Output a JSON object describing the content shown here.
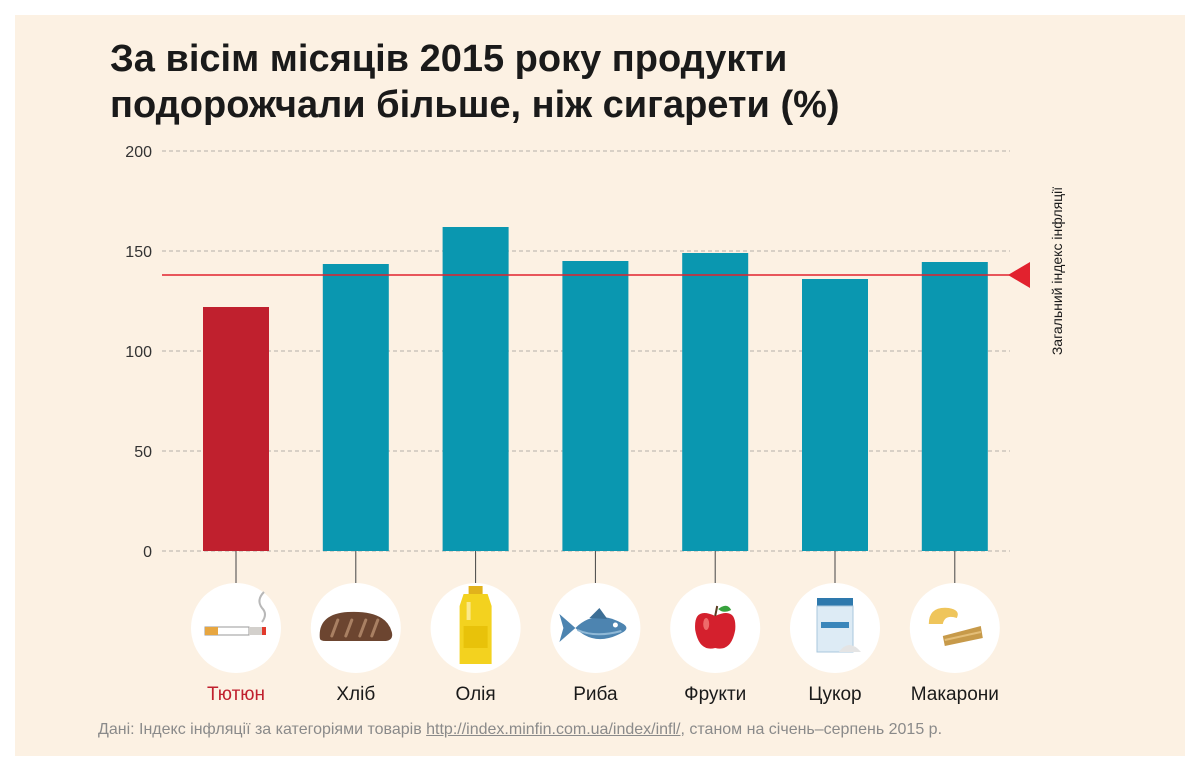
{
  "title": "За вісім місяців 2015 року продукти подорожчали більше, ніж сигарети (%)",
  "colors": {
    "background": "#fcf1e3",
    "highlight": "#c0202e",
    "bar": "#0a97b0",
    "reference_line": "#e2222e",
    "grid": "#b5b0aa",
    "category_text": "#1a1a1a"
  },
  "chart_data": {
    "type": "bar",
    "title": "За вісім місяців 2015 року продукти подорожчали більше, ніж сигарети (%)",
    "categories": [
      "Тютюн",
      "Хліб",
      "Олія",
      "Риба",
      "Фрукти",
      "Цукор",
      "Макарони"
    ],
    "icons": [
      "cigarette-icon",
      "bread-icon",
      "oil-bottle-icon",
      "fish-icon",
      "apple-icon",
      "sugar-icon",
      "pasta-icon"
    ],
    "values": [
      122,
      143.5,
      162,
      145,
      149,
      136,
      144.5
    ],
    "highlight_index": 0,
    "yticks": [
      0,
      50,
      100,
      150,
      200
    ],
    "ylim": [
      0,
      200
    ],
    "grid": true,
    "reference": {
      "value": 138,
      "label": "Загальний індекс інфляції"
    }
  },
  "source": {
    "prefix": "Дані:  Індекс інфляції за категоріями товарів ",
    "link": "http://index.minfin.com.ua/index/infl/",
    "suffix": ",  станом на січень–серпень 2015 р."
  }
}
